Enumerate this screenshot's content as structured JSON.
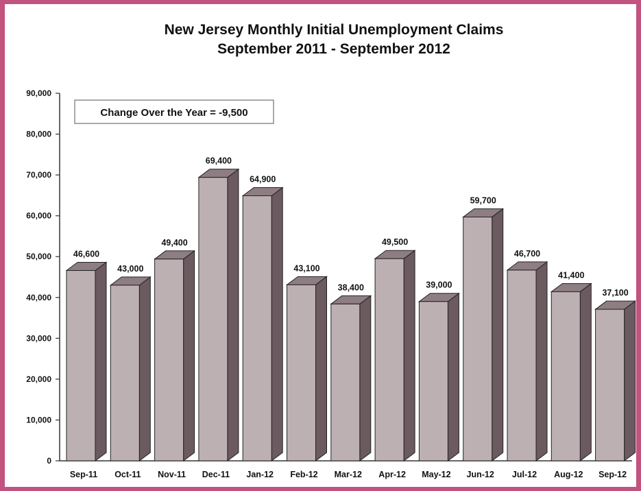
{
  "chart_data": {
    "type": "bar",
    "title": "New Jersey Monthly Initial Unemployment Claims",
    "subtitle": "September 2011 - September 2012",
    "annotation": "Change Over the Year = -9,500",
    "categories": [
      "Sep-11",
      "Oct-11",
      "Nov-11",
      "Dec-11",
      "Jan-12",
      "Feb-12",
      "Mar-12",
      "Apr-12",
      "May-12",
      "Jun-12",
      "Jul-12",
      "Aug-12",
      "Sep-12"
    ],
    "values": [
      46600,
      43000,
      49400,
      69400,
      64900,
      43100,
      38400,
      49500,
      39000,
      59700,
      46700,
      41400,
      37100
    ],
    "value_labels": [
      "46,600",
      "43,000",
      "49,400",
      "69,400",
      "64,900",
      "43,100",
      "38,400",
      "49,500",
      "39,000",
      "59,700",
      "46,700",
      "41,400",
      "37,100"
    ],
    "yticks": [
      0,
      10000,
      20000,
      30000,
      40000,
      50000,
      60000,
      70000,
      80000,
      90000
    ],
    "ytick_labels": [
      "0",
      "10,000",
      "20,000",
      "30,000",
      "40,000",
      "50,000",
      "60,000",
      "70,000",
      "80,000",
      "90,000"
    ],
    "ylim": [
      0,
      90000
    ],
    "grid": false,
    "legend": "none",
    "colors": {
      "bar_front": "#bdb0b3",
      "bar_top": "#8e7d83",
      "bar_side": "#6b5a60",
      "border": "#c2527e"
    }
  }
}
